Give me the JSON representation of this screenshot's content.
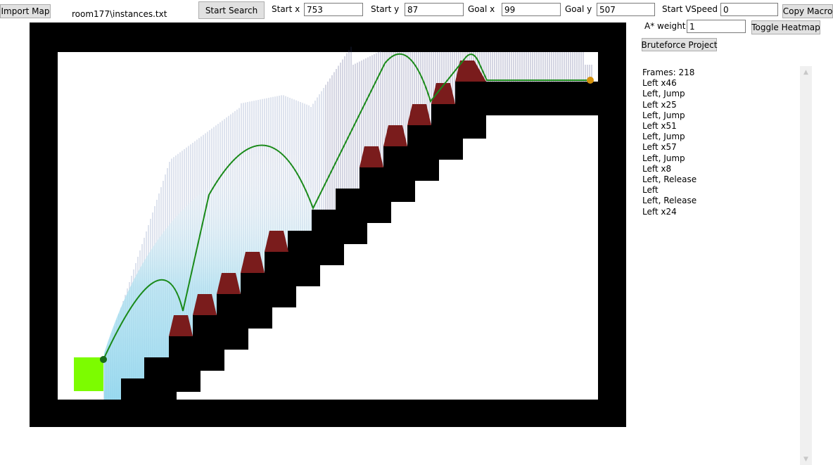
{
  "toolbar": {
    "import_label": "Import Map",
    "file_name": "room177\\instances.txt",
    "start_search_label": "Start Search",
    "start_x_label": "Start x",
    "start_x_value": "753",
    "start_y_label": "Start y",
    "start_y_value": "87",
    "goal_x_label": "Goal x",
    "goal_x_value": "99",
    "goal_y_label": "Goal y",
    "goal_y_value": "507",
    "vspeed_label": "Start VSpeed",
    "vspeed_value": "0",
    "copy_macro_label": "Copy Macro",
    "astar_label": "A* weight",
    "astar_value": "1",
    "heatmap_label": "Toggle Heatmap",
    "bruteforce_label": "Bruteforce Project"
  },
  "output": {
    "lines": [
      "Frames: 218",
      "Left x46",
      "Left, Jump",
      "Left x25",
      "Left, Jump",
      "Left x51",
      "Left, Jump",
      "Left x57",
      "Left, Jump",
      "Left x8",
      "Left, Release",
      "Left",
      "Left, Release",
      "Left x24"
    ]
  },
  "colors": {
    "wall": "#000000",
    "spike": "#7a1c1c",
    "path": "#1a8a1a",
    "goal_block": "#7cfc00",
    "start_marker": "#d4900a",
    "goal_marker": "#1a6b1a"
  }
}
